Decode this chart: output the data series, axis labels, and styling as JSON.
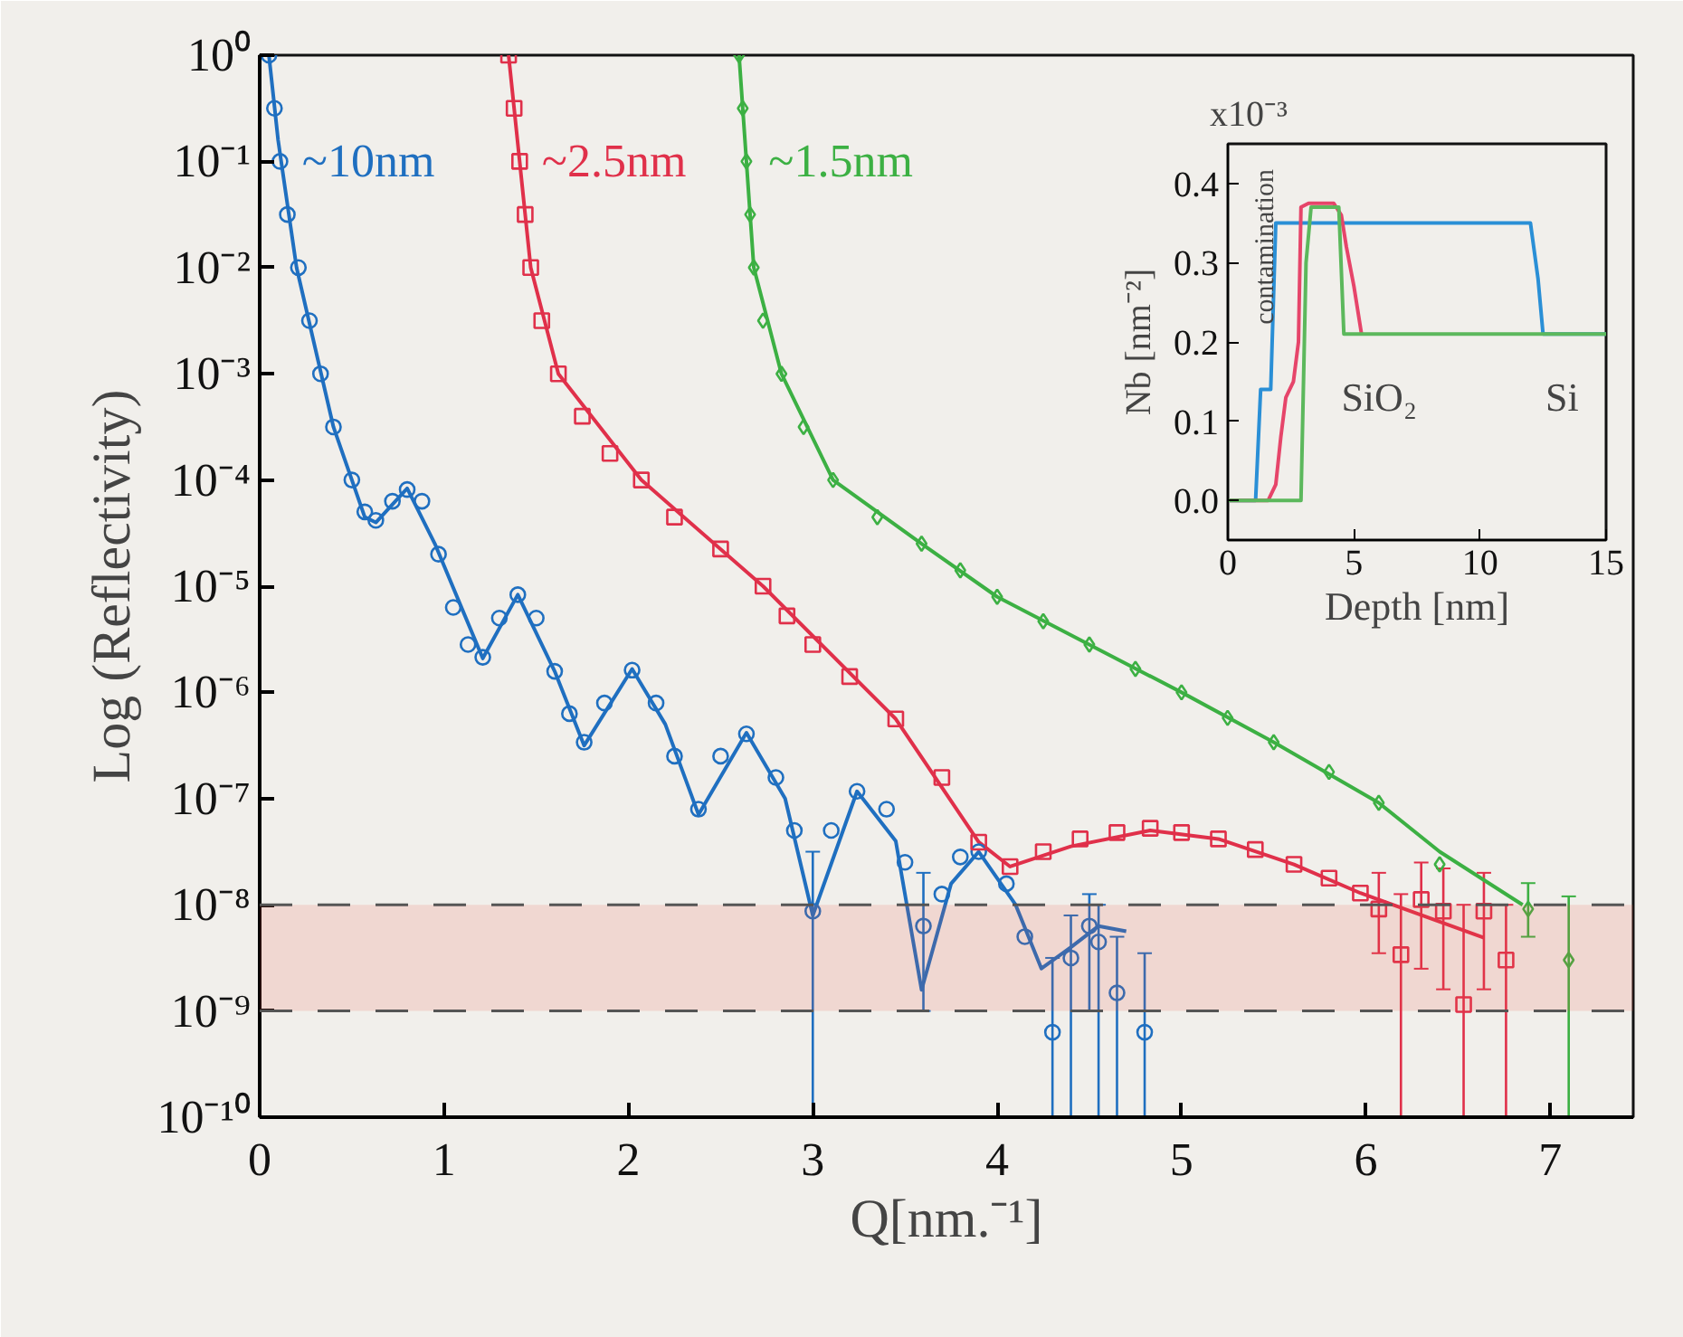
{
  "chart_data": [
    {
      "type": "scatter",
      "xlabel": "Q[nm.⁻¹]",
      "ylabel": "Log (Reflectivity)",
      "log": "y",
      "grid": false,
      "xlim": [
        0,
        7.45
      ],
      "xticks": [
        0,
        1,
        2,
        3,
        4,
        5,
        6,
        7
      ],
      "ylim": [
        1e-10,
        1
      ],
      "yticks": [
        {
          "value": 1,
          "label": "10⁰"
        },
        {
          "value": 0.1,
          "label": "10⁻¹"
        },
        {
          "value": 0.01,
          "label": "10⁻²"
        },
        {
          "value": 0.001,
          "label": "10⁻³"
        },
        {
          "value": 0.0001,
          "label": "10⁻⁴"
        },
        {
          "value": 1e-05,
          "label": "10⁻⁵"
        },
        {
          "value": 1e-06,
          "label": "10⁻⁶"
        },
        {
          "value": 1e-07,
          "label": "10⁻⁷"
        },
        {
          "value": 1e-08,
          "label": "10⁻⁸"
        },
        {
          "value": 1e-09,
          "label": "10⁻⁹"
        },
        {
          "value": 1e-10,
          "label": "10⁻¹⁰"
        }
      ],
      "ref_lines": [
        {
          "axis": "y",
          "value": 1e-08,
          "color": "#555555",
          "line_style": "dashed"
        },
        {
          "axis": "y",
          "value": 1e-09,
          "color": "#555555",
          "line_style": "dashed"
        }
      ],
      "bands": [
        {
          "axis": "y",
          "from": 1e-09,
          "to": 1e-08,
          "color": "#e8503a"
        }
      ],
      "series": [
        {
          "type": "line",
          "color": "#1f6fc0",
          "x": [
            0.05,
            0.1,
            0.2,
            0.4,
            0.57,
            0.63,
            0.8,
            0.95,
            1.21,
            1.4,
            1.6,
            1.76,
            2.02,
            2.2,
            2.38,
            2.64,
            2.85,
            3.0,
            3.24,
            3.45,
            3.59,
            3.75,
            3.9,
            4.1,
            4.24,
            4.4,
            4.55,
            4.7
          ],
          "values": [
            1,
            0.158,
            0.01,
            0.000316,
            4.47e-05,
            3.98e-05,
            8.32e-05,
            2.51e-05,
            2.09e-06,
            8.32e-06,
            1.58e-06,
            3.16e-07,
            1.66e-06,
            5.01e-07,
            7.08e-08,
            4.17e-07,
            1e-07,
            7.94e-09,
            1.17e-07,
            3.98e-08,
            1.58e-09,
            1.58e-08,
            3.16e-08,
            1e-08,
            2.51e-09,
            3.98e-09,
            6.31e-09,
            5.62e-09
          ]
        },
        {
          "type": "line",
          "color": "#e0304a",
          "x": [
            1.35,
            1.47,
            1.62,
            2.07,
            2.73,
            3.45,
            3.9,
            4.07,
            4.4,
            4.83,
            5.2,
            5.61,
            5.97,
            6.64
          ],
          "values": [
            1,
            0.01,
            0.001,
            0.0001,
            1e-05,
            5.62e-07,
            3.89e-08,
            2.29e-08,
            3.55e-08,
            5.01e-08,
            4.17e-08,
            2.4e-08,
            1.29e-08,
            4.9e-09
          ]
        },
        {
          "type": "line",
          "color": "#3cb043",
          "x": [
            2.6,
            2.68,
            2.83,
            3.11,
            3.59,
            4.0,
            5.0,
            5.5,
            6.07,
            6.4,
            6.85
          ],
          "values": [
            1,
            0.01,
            0.001,
            0.0001,
            2.51e-05,
            7.94e-06,
            1e-06,
            3.39e-07,
            9.12e-08,
            3.16e-08,
            1e-08
          ]
        },
        {
          "type": "scatter",
          "name": "~10nm",
          "color": "#1f6fc0",
          "marker": "circle",
          "x": [
            0.05,
            0.08,
            0.11,
            0.15,
            0.21,
            0.27,
            0.33,
            0.4,
            0.5,
            0.57,
            0.63,
            0.72,
            0.8,
            0.88,
            0.97,
            1.05,
            1.13,
            1.21,
            1.3,
            1.4,
            1.5,
            1.6,
            1.68,
            1.76,
            1.87,
            2.02,
            2.15,
            2.25,
            2.38,
            2.5,
            2.64,
            2.8,
            2.9,
            3.0,
            3.1,
            3.24,
            3.4,
            3.5,
            3.6,
            3.7,
            3.8,
            3.9,
            4.05,
            4.15,
            4.3,
            4.4,
            4.5,
            4.55,
            4.65,
            4.8
          ],
          "values": [
            1,
            0.316,
            0.1,
            0.0316,
            0.01,
            0.00316,
            0.001,
            0.000316,
            0.0001,
            5.01e-05,
            4.17e-05,
            6.31e-05,
            8.13e-05,
            6.31e-05,
            2e-05,
            6.31e-06,
            2.82e-06,
            2.14e-06,
            5.01e-06,
            8.32e-06,
            5.01e-06,
            1.58e-06,
            6.31e-07,
            3.39e-07,
            7.94e-07,
            1.62e-06,
            7.94e-07,
            2.51e-07,
            7.94e-08,
            2.51e-07,
            4.07e-07,
            1.58e-07,
            5.01e-08,
            8.71e-09,
            5.01e-08,
            1.17e-07,
            7.94e-08,
            2.51e-08,
            6.31e-09,
            1.26e-08,
            2.82e-08,
            3.16e-08,
            1.58e-08,
            5.01e-09,
            6.31e-10,
            3.16e-09,
            6.31e-09,
            4.47e-09,
            1.48e-09,
            6.31e-10
          ],
          "errors": [
            null,
            null,
            null,
            null,
            null,
            null,
            null,
            null,
            null,
            null,
            null,
            null,
            null,
            null,
            null,
            null,
            null,
            null,
            null,
            null,
            null,
            null,
            null,
            null,
            null,
            null,
            null,
            null,
            null,
            null,
            null,
            null,
            null,
            [
              1e-10,
              3.16e-08
            ],
            null,
            null,
            null,
            null,
            [
              1e-09,
              2e-08
            ],
            null,
            null,
            null,
            null,
            null,
            [
              1e-10,
              3.16e-09
            ],
            [
              1e-10,
              7.94e-09
            ],
            [
              1e-09,
              1.26e-08
            ],
            [
              1e-10,
              1e-08
            ],
            [
              1e-10,
              5e-09
            ],
            [
              1e-10,
              3.5e-09
            ]
          ]
        },
        {
          "type": "scatter",
          "name": "~2.5nm",
          "color": "#e0304a",
          "marker": "square",
          "x": [
            1.35,
            1.38,
            1.41,
            1.44,
            1.47,
            1.53,
            1.62,
            1.75,
            1.9,
            2.07,
            2.25,
            2.5,
            2.73,
            2.86,
            3.0,
            3.2,
            3.45,
            3.7,
            3.9,
            4.07,
            4.25,
            4.45,
            4.65,
            4.83,
            5.0,
            5.2,
            5.4,
            5.61,
            5.8,
            5.97,
            6.07,
            6.19,
            6.3,
            6.42,
            6.53,
            6.64,
            6.76
          ],
          "values": [
            1,
            0.316,
            0.1,
            0.0316,
            0.01,
            0.00316,
            0.001,
            0.000398,
            0.000178,
            0.0001,
            4.47e-05,
            2.24e-05,
            1e-05,
            5.25e-06,
            2.82e-06,
            1.41e-06,
            5.62e-07,
            1.58e-07,
            3.89e-08,
            2.29e-08,
            3.16e-08,
            4.17e-08,
            4.79e-08,
            5.25e-08,
            4.79e-08,
            4.17e-08,
            3.31e-08,
            2.4e-08,
            1.78e-08,
            1.29e-08,
            9.12e-09,
            3.39e-09,
            1.12e-08,
            8.71e-09,
            1.15e-09,
            8.71e-09,
            3.02e-09
          ],
          "errors": [
            null,
            null,
            null,
            null,
            null,
            null,
            null,
            null,
            null,
            null,
            null,
            null,
            null,
            null,
            null,
            null,
            null,
            null,
            null,
            null,
            null,
            null,
            null,
            null,
            null,
            null,
            null,
            null,
            null,
            null,
            [
              3.5e-09,
              2e-08
            ],
            [
              1e-10,
              1.26e-08
            ],
            [
              2.5e-09,
              2.5e-08
            ],
            [
              1.6e-09,
              2.2e-08
            ],
            [
              1e-10,
              1e-08
            ],
            [
              1.6e-09,
              2e-08
            ],
            [
              1e-10,
              1e-08
            ]
          ]
        },
        {
          "type": "scatter",
          "name": "~1.5nm",
          "color": "#3cb043",
          "marker": "diamond",
          "x": [
            2.6,
            2.62,
            2.64,
            2.66,
            2.68,
            2.73,
            2.83,
            2.95,
            3.11,
            3.35,
            3.59,
            3.8,
            4.0,
            4.25,
            4.5,
            4.75,
            5.0,
            5.25,
            5.5,
            5.8,
            6.07,
            6.4,
            6.88,
            7.1
          ],
          "values": [
            1,
            0.316,
            0.1,
            0.0316,
            0.01,
            0.00316,
            0.001,
            0.000316,
            0.0001,
            4.47e-05,
            2.51e-05,
            1.41e-05,
            7.94e-06,
            4.68e-06,
            2.82e-06,
            1.66e-06,
            1e-06,
            5.75e-07,
            3.39e-07,
            1.78e-07,
            9.12e-08,
            2.4e-08,
            9.12e-09,
            3.02e-09
          ],
          "errors": [
            null,
            null,
            null,
            null,
            null,
            null,
            null,
            null,
            null,
            null,
            null,
            null,
            null,
            null,
            null,
            null,
            null,
            null,
            null,
            null,
            null,
            null,
            [
              5e-09,
              1.6e-08
            ],
            [
              1e-10,
              1.2e-08
            ]
          ]
        }
      ]
    },
    {
      "type": "line",
      "xlabel": "Depth [nm]",
      "ylabel": "Nb [nm⁻²]",
      "grid": false,
      "xlim": [
        0,
        15
      ],
      "xticks": [
        0,
        5,
        10,
        15
      ],
      "ylim": [
        -0.05,
        0.45
      ],
      "yticks": [
        {
          "value": 0,
          "label": "0.0"
        },
        0.1,
        0.2,
        0.3,
        0.4
      ],
      "annotations": [
        "x10⁻³",
        "contamination",
        "SiO₂",
        "Si"
      ],
      "series": [
        {
          "color": "#2a8fd6",
          "x": [
            0,
            1.1,
            1.3,
            1.7,
            1.9,
            12.0,
            12.3,
            12.5,
            15
          ],
          "values": [
            0,
            0,
            0.14,
            0.14,
            0.35,
            0.35,
            0.28,
            0.21,
            0.21
          ]
        },
        {
          "color": "#e6456a",
          "x": [
            0,
            1.6,
            1.9,
            2.1,
            2.3,
            2.6,
            2.8,
            2.9,
            3.2,
            4.2,
            4.5,
            4.7,
            5.0,
            5.3
          ],
          "values": [
            0,
            0,
            0.02,
            0.08,
            0.13,
            0.15,
            0.2,
            0.37,
            0.375,
            0.375,
            0.36,
            0.32,
            0.27,
            0.21
          ]
        },
        {
          "color": "#5cb85c",
          "x": [
            0,
            2.9,
            3.1,
            3.3,
            4.4,
            4.6,
            15
          ],
          "values": [
            0,
            0,
            0.3,
            0.37,
            0.37,
            0.21,
            0.21
          ]
        }
      ]
    }
  ]
}
